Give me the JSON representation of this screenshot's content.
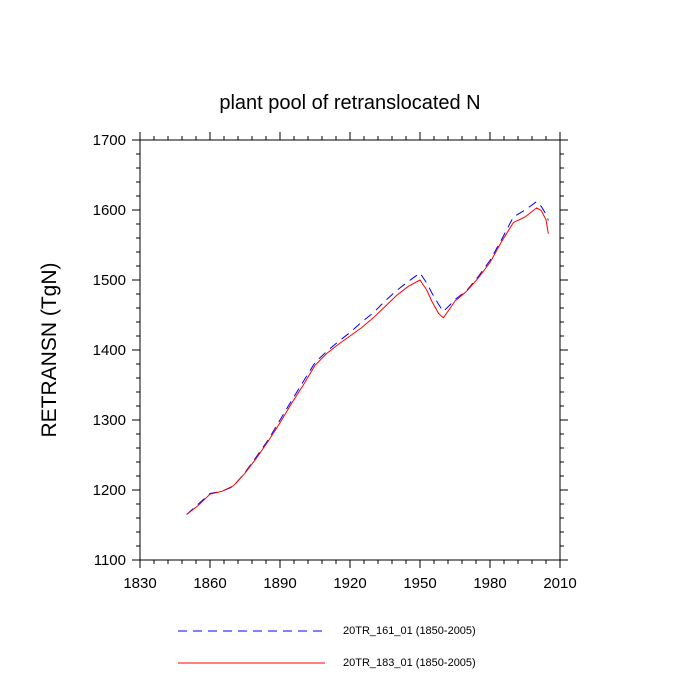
{
  "chart_data": {
    "type": "line",
    "title": "plant pool of retranslocated N",
    "xlabel": "",
    "ylabel": "RETRANSN  (TgN)",
    "xlim": [
      1830,
      2010
    ],
    "ylim": [
      1100,
      1700
    ],
    "xticks": [
      1830,
      1860,
      1890,
      1920,
      1950,
      1980,
      2010
    ],
    "yticks": [
      1100,
      1200,
      1300,
      1400,
      1500,
      1600,
      1700
    ],
    "grid": false,
    "legend_position": "bottom",
    "series": [
      {
        "name": "20TR_161_01 (1850-2005)",
        "color": "#0000ff",
        "style": "dashed",
        "x": [
          1850,
          1855,
          1860,
          1865,
          1870,
          1875,
          1880,
          1885,
          1890,
          1895,
          1900,
          1905,
          1910,
          1915,
          1920,
          1925,
          1930,
          1935,
          1940,
          1945,
          1950,
          1953,
          1955,
          1958,
          1960,
          1963,
          1965,
          1970,
          1975,
          1980,
          1985,
          1990,
          1995,
          2000,
          2002,
          2004,
          2005
        ],
        "values": [
          1165,
          1180,
          1195,
          1198,
          1205,
          1225,
          1248,
          1272,
          1300,
          1328,
          1355,
          1382,
          1398,
          1412,
          1425,
          1440,
          1453,
          1470,
          1485,
          1498,
          1510,
          1495,
          1482,
          1465,
          1455,
          1465,
          1472,
          1485,
          1505,
          1528,
          1558,
          1590,
          1600,
          1612,
          1605,
          1594,
          1585
        ]
      },
      {
        "name": "20TR_183_01 (1850-2005)",
        "color": "#ff0000",
        "style": "solid",
        "x": [
          1850,
          1855,
          1860,
          1865,
          1870,
          1875,
          1880,
          1885,
          1890,
          1895,
          1900,
          1905,
          1910,
          1915,
          1920,
          1925,
          1930,
          1935,
          1940,
          1945,
          1950,
          1953,
          1955,
          1958,
          1960,
          1963,
          1965,
          1970,
          1975,
          1980,
          1985,
          1990,
          1995,
          2000,
          2002,
          2004,
          2005
        ],
        "values": [
          1165,
          1178,
          1194,
          1198,
          1206,
          1224,
          1246,
          1270,
          1296,
          1324,
          1350,
          1378,
          1395,
          1408,
          1420,
          1432,
          1446,
          1462,
          1478,
          1491,
          1500,
          1485,
          1470,
          1452,
          1446,
          1460,
          1470,
          1484,
          1503,
          1525,
          1555,
          1582,
          1590,
          1603,
          1599,
          1586,
          1566
        ]
      }
    ]
  }
}
